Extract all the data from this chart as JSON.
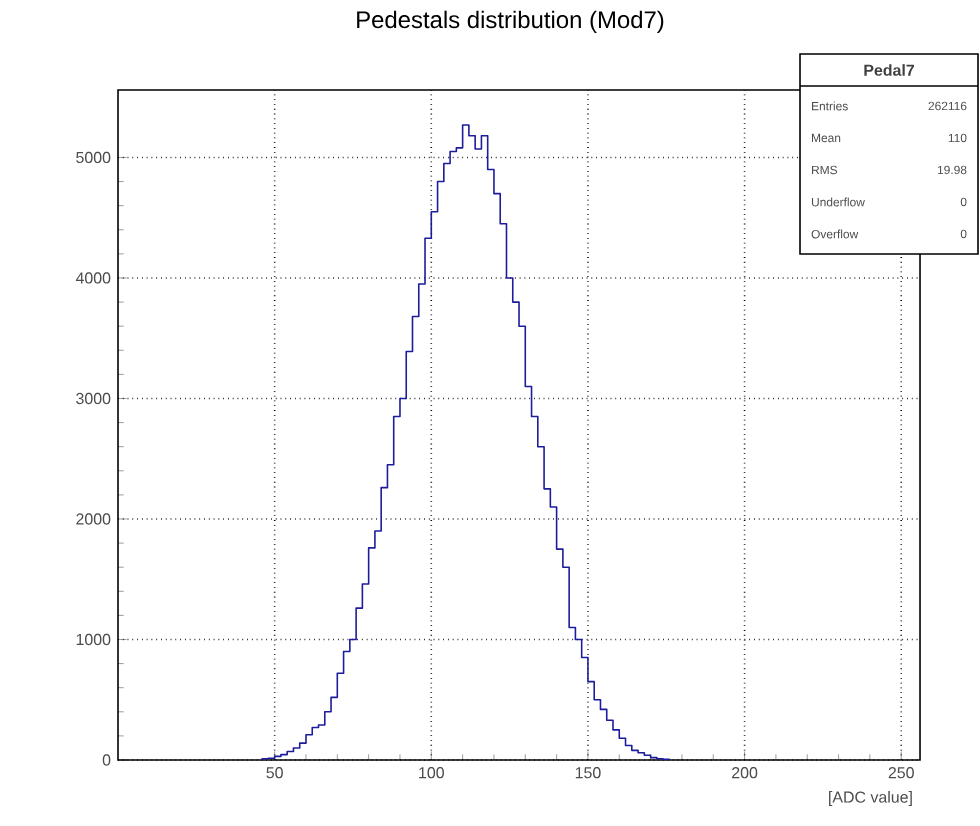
{
  "chart_data": {
    "type": "histogram",
    "title": "Pedestals distribution (Mod7)",
    "xlabel": "[ADC value]",
    "bins": [
      46,
      48,
      50,
      52,
      54,
      56,
      58,
      60,
      62,
      64,
      66,
      68,
      70,
      72,
      74,
      76,
      78,
      80,
      82,
      84,
      86,
      88,
      90,
      92,
      94,
      96,
      98,
      100,
      102,
      104,
      106,
      108,
      110,
      112,
      114,
      116,
      118,
      120,
      122,
      124,
      126,
      128,
      130,
      132,
      134,
      136,
      138,
      140,
      142,
      144,
      146,
      148,
      150,
      152,
      154,
      156,
      158,
      160,
      162,
      164,
      166,
      168,
      170,
      172,
      174,
      176
    ],
    "values": [
      10,
      15,
      30,
      45,
      70,
      100,
      140,
      210,
      270,
      290,
      400,
      520,
      720,
      900,
      1000,
      1260,
      1460,
      1760,
      1900,
      2260,
      2450,
      2850,
      3000,
      3390,
      3680,
      3950,
      4330,
      4550,
      4800,
      4950,
      5050,
      5080,
      5270,
      5180,
      5070,
      5180,
      4900,
      4700,
      4450,
      4000,
      3800,
      3600,
      3100,
      2850,
      2600,
      2250,
      2100,
      1750,
      1600,
      1100,
      1000,
      850,
      650,
      500,
      420,
      330,
      250,
      180,
      120,
      80,
      60,
      40,
      20,
      10,
      5
    ],
    "color": "#1c1c9c",
    "xlim": [
      0,
      256
    ],
    "ylim": [
      0,
      5560
    ],
    "xticks": [
      50,
      100,
      150,
      200,
      250
    ],
    "yticks": [
      0,
      1000,
      2000,
      3000,
      4000,
      5000
    ],
    "grid": true,
    "annotations": [
      "Pedal7",
      "Entries",
      "262116",
      "Mean",
      "110",
      "RMS",
      "19.98",
      "Underflow",
      "0",
      "Overflow",
      "0"
    ]
  }
}
